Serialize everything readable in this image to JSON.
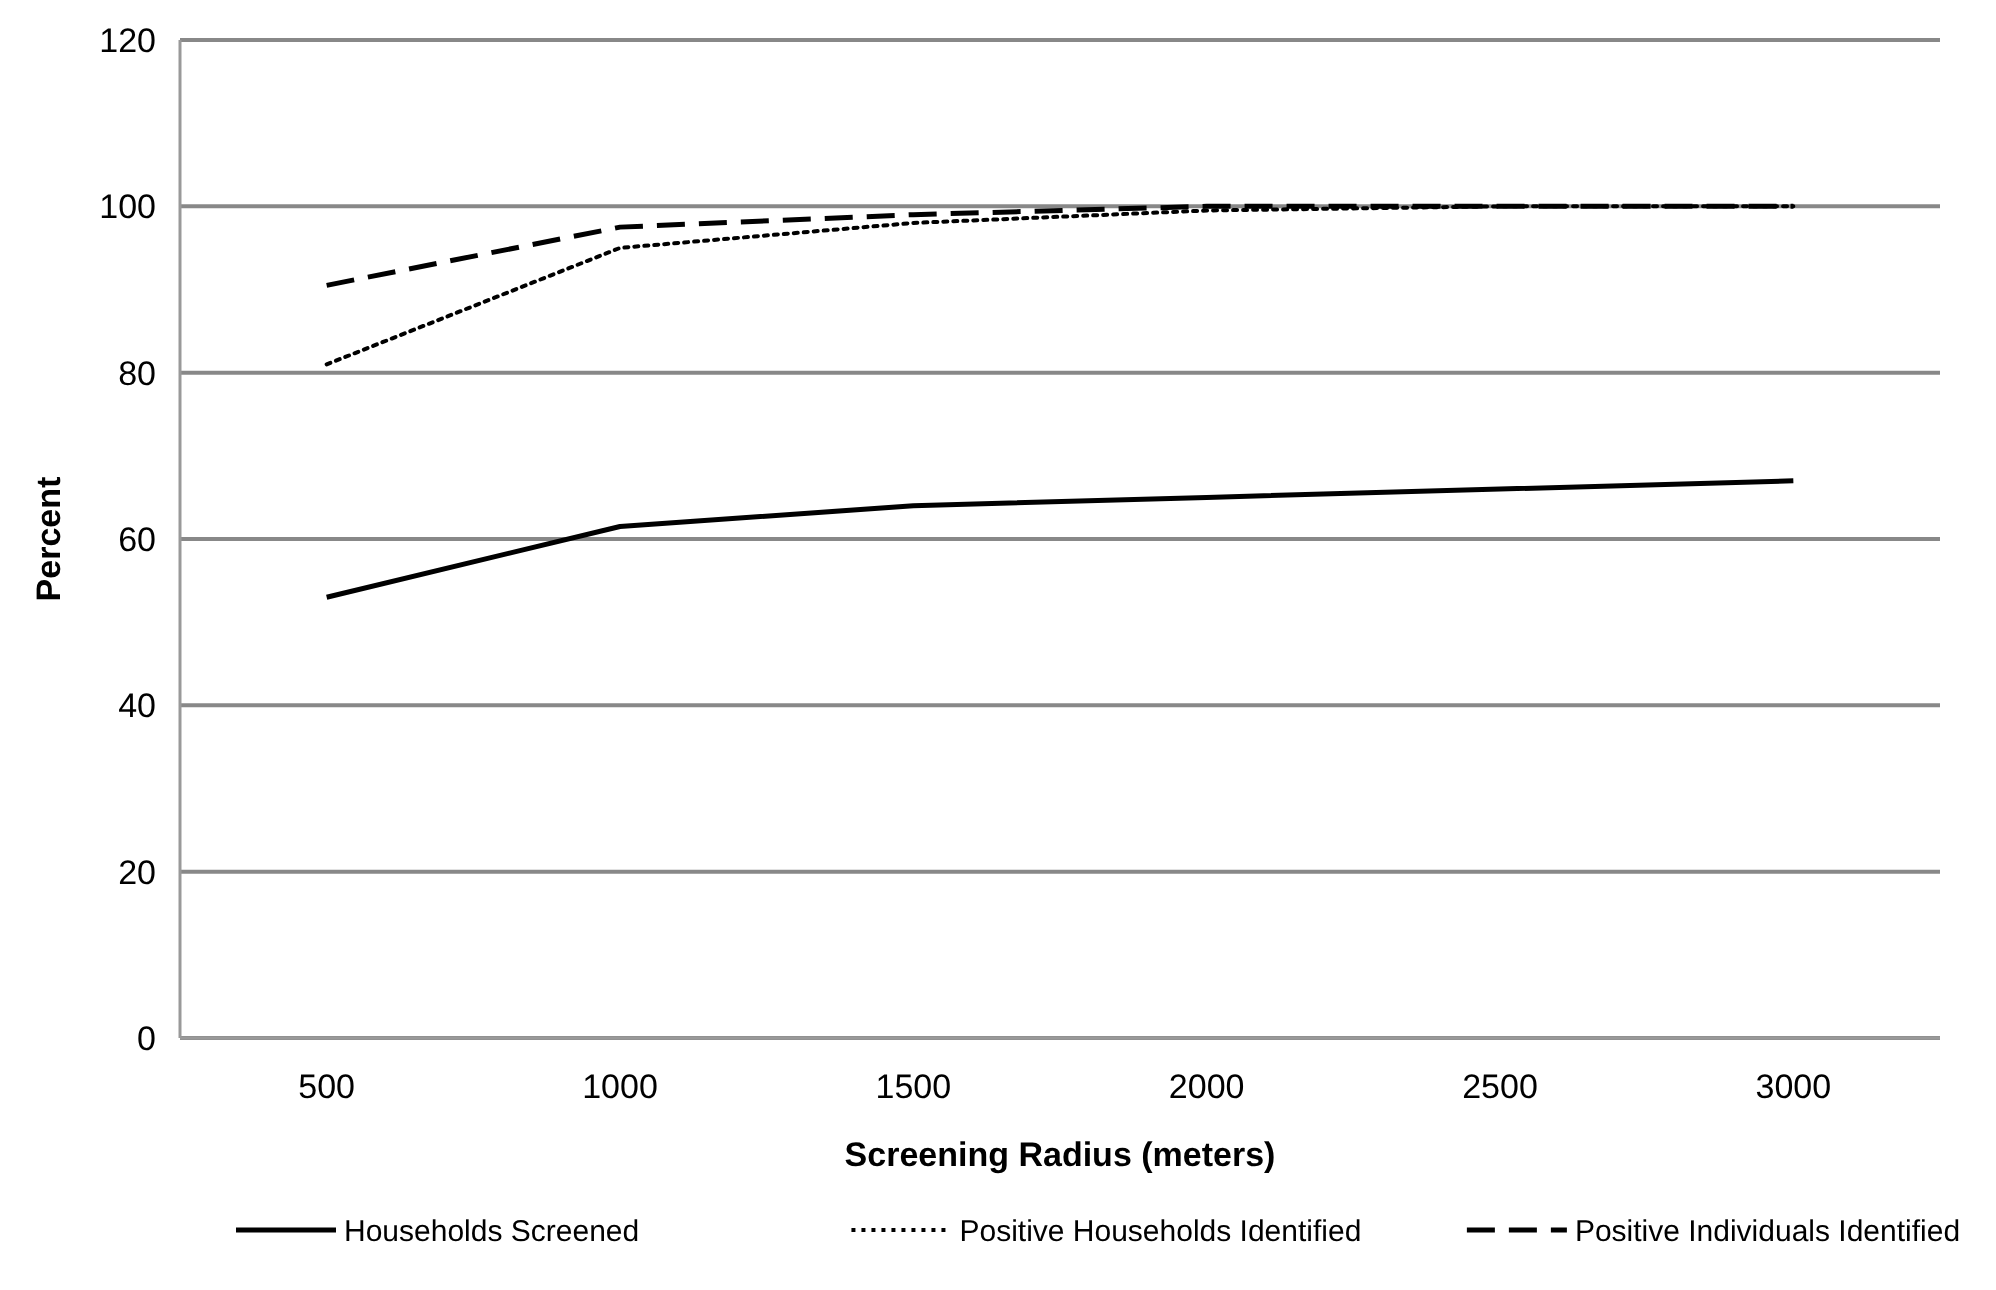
{
  "chart_data": {
    "type": "line",
    "xlabel": "Screening Radius (meters)",
    "ylabel": "Percent",
    "categories": [
      "500",
      "1000",
      "1500",
      "2000",
      "2500",
      "3000"
    ],
    "series": [
      {
        "name": "Households Screened",
        "color": "#000000",
        "line_style": "solid",
        "values": [
          53,
          61.5,
          64,
          65,
          66,
          67
        ]
      },
      {
        "name": "Positive Households Identified",
        "color": "#000000",
        "line_style": "dotted",
        "values": [
          81,
          95,
          98,
          99.5,
          100,
          100
        ]
      },
      {
        "name": "Positive Individuals Identified",
        "color": "#000000",
        "line_style": "dashed",
        "values": [
          90.5,
          97.5,
          99,
          100,
          100,
          100
        ]
      }
    ],
    "ylim": [
      0,
      120
    ],
    "yticks": [
      0,
      20,
      40,
      60,
      80,
      100,
      120
    ],
    "grid": "y",
    "legend": "bottom",
    "marker": "none"
  }
}
